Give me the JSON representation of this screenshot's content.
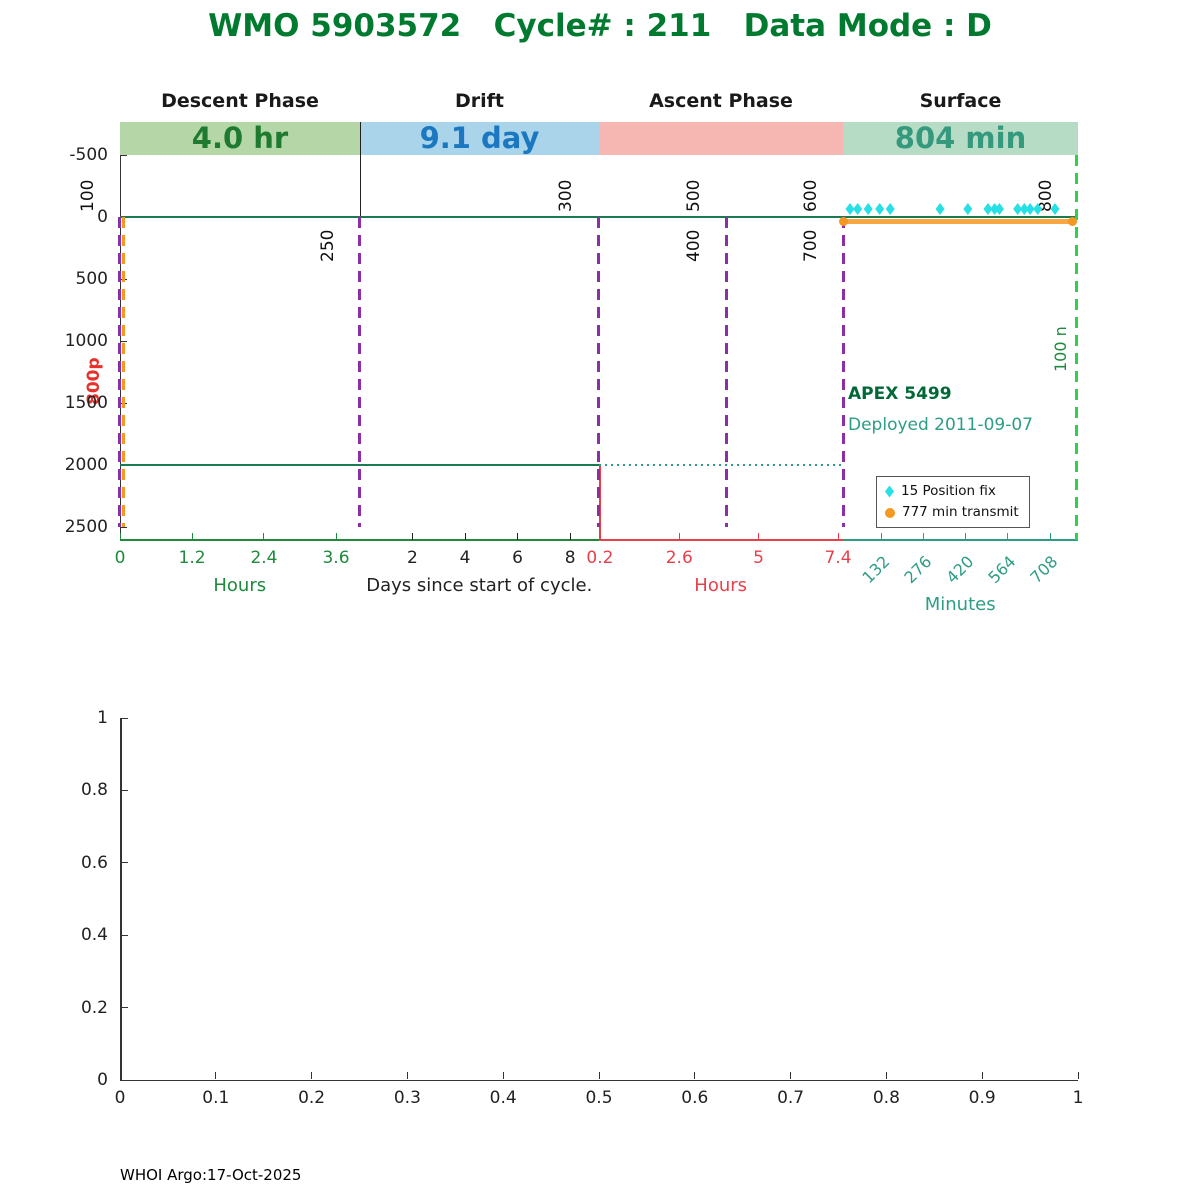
{
  "title": "WMO 5903572   Cycle# : 211   Data Mode : D",
  "footer": "WHOI Argo:17-Oct-2025",
  "annotations": {
    "float_model": "APEX 5499",
    "deployed": "Deployed 2011-09-07",
    "park_marker": "800p",
    "next_profile_marker": "100 n"
  },
  "legend": {
    "position_fix": "15 Position fix",
    "transmit": "777 min transmit"
  },
  "colors": {
    "title": "#007a2f",
    "phase_label": "#1a1a1a",
    "purple_line": "#8a2fa5",
    "green_dash_line": "#2ed04e",
    "orange": "#f59821",
    "cyan": "#27e0e6",
    "cyan_edge": "#00b6c9",
    "zero_line": "#1b7a52",
    "park_line": "#1b7a52",
    "park_dotted": "#2e9d85",
    "green_axis": "#1e8a3c",
    "days_axis": "#222222",
    "red_axis": "#e8404b",
    "teal_axis": "#2e9d85",
    "apex_text": "#006837",
    "deployed_text": "#2e9d85",
    "park_marker": "#e8302a",
    "next_marker": "#1e8a3c",
    "spine": "#333333",
    "event_label": "#111111"
  },
  "chart_data": {
    "type": "line",
    "title": "WMO 5903572   Cycle# : 211   Data Mode : D",
    "description": "Argo float cycle timing diagram: depth versus time across descent, drift, ascent and surface phases",
    "y_axis": {
      "ticks": [
        -500,
        0,
        500,
        1000,
        1500,
        2000,
        2500
      ],
      "min": -500,
      "max": 2600,
      "orientation": "depth increases downward"
    },
    "phases": [
      {
        "name": "Descent Phase",
        "duration": "4.0 hr",
        "x0": 0.0,
        "x1": 0.2505,
        "band": "#b5d7a8",
        "text": "#1d7a2e"
      },
      {
        "name": "Drift",
        "duration": "9.1 day",
        "x0": 0.2505,
        "x1": 0.5,
        "band": "#a9d4ea",
        "text": "#1b78c0"
      },
      {
        "name": "Ascent Phase",
        "duration": "",
        "x0": 0.5,
        "x1": 0.7547,
        "band": "#f6b7b3",
        "text": "#c03030"
      },
      {
        "name": "Surface",
        "duration": "804 min",
        "x0": 0.7547,
        "x1": 1.0,
        "band": "#b7dcc6",
        "text": "#35997d"
      }
    ],
    "x_segments": [
      {
        "label": "Hours",
        "color_key": "green_axis",
        "center": 0.125,
        "rotated": false,
        "ticks": [
          {
            "t": "0",
            "x": 0.0
          },
          {
            "t": "1.2",
            "x": 0.0752
          },
          {
            "t": "2.4",
            "x": 0.1503
          },
          {
            "t": "3.6",
            "x": 0.2255
          }
        ]
      },
      {
        "label": "Days since start of cycle.",
        "color_key": "days_axis",
        "center": 0.375,
        "rotated": false,
        "ticks": [
          {
            "t": "2",
            "x": 0.3053
          },
          {
            "t": "4",
            "x": 0.3602
          },
          {
            "t": "6",
            "x": 0.415
          },
          {
            "t": "8",
            "x": 0.4699
          }
        ]
      },
      {
        "label": "Hours",
        "color_key": "red_axis",
        "center": 0.627,
        "rotated": false,
        "ticks": [
          {
            "t": "0.2",
            "x": 0.501
          },
          {
            "t": "2.6",
            "x": 0.5838
          },
          {
            "t": "5",
            "x": 0.6666
          },
          {
            "t": "7.4",
            "x": 0.7495
          }
        ]
      },
      {
        "label": "Minutes",
        "color_key": "teal_axis",
        "center": 0.877,
        "rotated": true,
        "ticks": [
          {
            "t": "132",
            "x": 0.795
          },
          {
            "t": "276",
            "x": 0.839
          },
          {
            "t": "420",
            "x": 0.883
          },
          {
            "t": "564",
            "x": 0.9268
          },
          {
            "t": "708",
            "x": 0.9708
          }
        ]
      }
    ],
    "events": [
      {
        "x": 0.0,
        "above": "100",
        "below": "",
        "style": "purple"
      },
      {
        "x": 0.2505,
        "above": "",
        "below": "250",
        "style": "purple"
      },
      {
        "x": 0.499,
        "above": "300",
        "below": "",
        "style": "purple"
      },
      {
        "x": 0.6326,
        "above": "500",
        "below": "400",
        "style": "purple"
      },
      {
        "x": 0.7547,
        "above": "600",
        "below": "700",
        "style": "purple"
      },
      {
        "x": 1.0,
        "above": "800",
        "below": "",
        "style": "green"
      }
    ],
    "zero_line_depth": 0,
    "park_line": {
      "depth": 2000,
      "solid_x": [
        0.0,
        0.5
      ],
      "dotted_x": [
        0.5,
        0.7547
      ]
    },
    "descent_dashed_x": 0.0,
    "transmit_segment": {
      "x0": 0.7547,
      "x1": 0.9937,
      "label": "777 min transmit"
    },
    "position_fixes_x": [
      0.762,
      0.77,
      0.781,
      0.793,
      0.804,
      0.856,
      0.885,
      0.906,
      0.913,
      0.918,
      0.937,
      0.944,
      0.95,
      0.958,
      0.976
    ],
    "bottom_axes": {
      "x_ticks": [
        "0",
        "0.1",
        "0.2",
        "0.3",
        "0.4",
        "0.5",
        "0.6",
        "0.7",
        "0.8",
        "0.9",
        "1"
      ],
      "y_ticks": [
        "0",
        "0.2",
        "0.4",
        "0.6",
        "0.8",
        "1"
      ],
      "x_range": [
        0,
        1
      ],
      "y_range": [
        0,
        1
      ]
    }
  }
}
